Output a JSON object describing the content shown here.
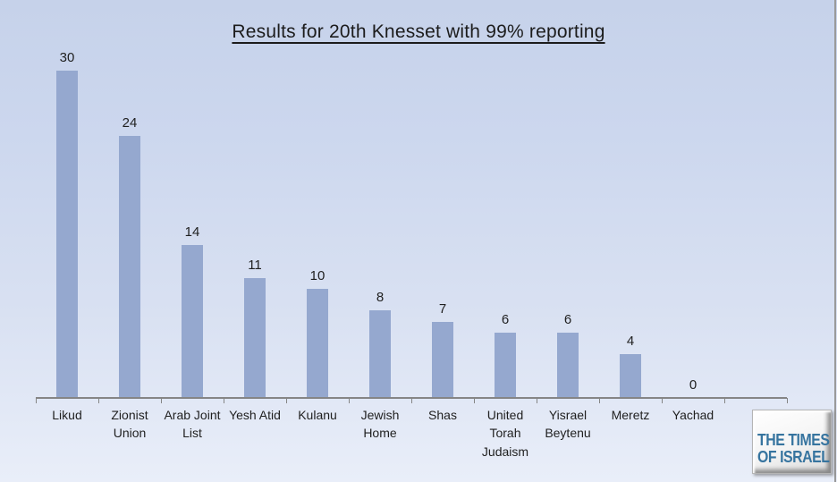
{
  "title": "Results for 20th Knesset with 99% reporting",
  "chart_data": {
    "type": "bar",
    "title": "Results for 20th Knesset with 99% reporting",
    "categories": [
      "Likud",
      "Zionist Union",
      "Arab Joint List",
      "Yesh Atid",
      "Kulanu",
      "Jewish Home",
      "Shas",
      "United Torah Judaism",
      "Yisrael Beytenu",
      "Meretz",
      "Yachad"
    ],
    "category_lines": [
      [
        "Likud"
      ],
      [
        "Zionist",
        "Union"
      ],
      [
        "Arab Joint",
        "List"
      ],
      [
        "Yesh Atid"
      ],
      [
        "Kulanu"
      ],
      [
        "Jewish",
        "Home"
      ],
      [
        "Shas"
      ],
      [
        "United",
        "Torah",
        "Judaism"
      ],
      [
        "Yisrael",
        "Beytenu"
      ],
      [
        "Meretz"
      ],
      [
        "Yachad"
      ]
    ],
    "values": [
      30,
      24,
      14,
      11,
      10,
      8,
      7,
      6,
      6,
      4,
      0
    ],
    "xlabel": "",
    "ylabel": "",
    "ylim": [
      0,
      30
    ],
    "grid": false,
    "legend": null,
    "value_labels_shown": true,
    "extra_empty_slots_right": 1,
    "bar_color": "#95a8cf"
  },
  "logo": {
    "line1": "THE TIMES",
    "line2": "OF ISRAEL"
  },
  "colors": {
    "background_top": "#c6d2ea",
    "background_bottom": "#e9eef9",
    "bar": "#95a8cf",
    "axis": "#858585",
    "text": "#1f1f1f",
    "logo_text": "#36749f"
  }
}
